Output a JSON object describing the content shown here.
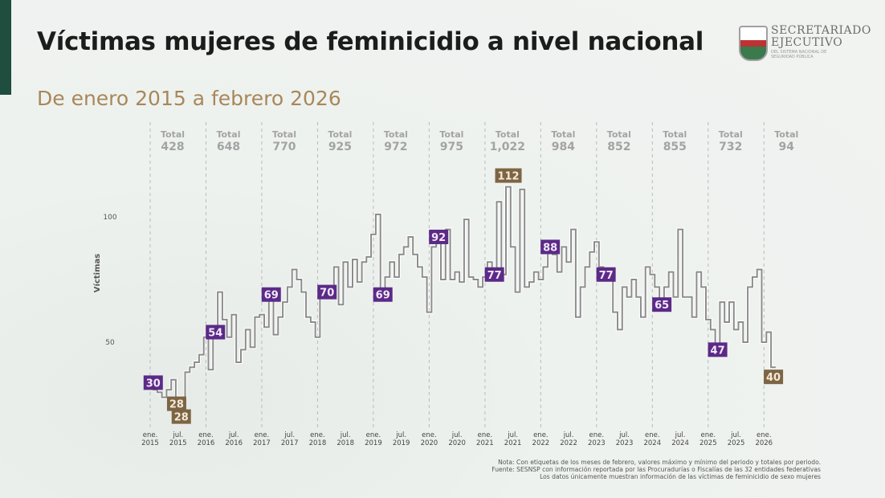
{
  "header": {
    "title": "Víctimas mujeres de feminicidio a nivel nacional",
    "subtitle": "De enero 2015 a febrero 2026",
    "logo": {
      "line1": "SECRETARIADO",
      "line2": "EJECUTIVO",
      "line3": "DEL SISTEMA NACIONAL DE SEGURIDAD PÚBLICA"
    }
  },
  "notes": [
    "Nota: Con etiquetas de los meses de febrero, valores máximo y mínimo del periodo y totales por periodo.",
    "Fuente: SESNSP con información reportada por las Procuradurías o Fiscalías de las 32 entidades federativas",
    "Los datos únicamente muestran información de las víctimas de feminicidio de sexo mujeres"
  ],
  "colors": {
    "line": "#8c8c8c",
    "label_purple": "#5b2a86",
    "label_brown": "#7d6544",
    "title": "#1c1c1c",
    "subtitle": "#a8875a",
    "accent": "#1f4d3e"
  },
  "chart_data": {
    "type": "line",
    "step": true,
    "ylabel": "Víctimas",
    "yticks": [
      50,
      100
    ],
    "ylim": [
      20,
      115
    ],
    "start": "2015-01",
    "end": "2026-02",
    "xticks": [
      {
        "month": "2015-01",
        "label": [
          "ene.",
          "2015"
        ]
      },
      {
        "month": "2015-07",
        "label": [
          "jul.",
          "2015"
        ]
      },
      {
        "month": "2016-01",
        "label": [
          "ene.",
          "2016"
        ]
      },
      {
        "month": "2016-07",
        "label": [
          "jul.",
          "2016"
        ]
      },
      {
        "month": "2017-01",
        "label": [
          "ene.",
          "2017"
        ]
      },
      {
        "month": "2017-07",
        "label": [
          "jul.",
          "2017"
        ]
      },
      {
        "month": "2018-01",
        "label": [
          "ene.",
          "2018"
        ]
      },
      {
        "month": "2018-07",
        "label": [
          "jul.",
          "2018"
        ]
      },
      {
        "month": "2019-01",
        "label": [
          "ene.",
          "2019"
        ]
      },
      {
        "month": "2019-07",
        "label": [
          "jul.",
          "2019"
        ]
      },
      {
        "month": "2020-01",
        "label": [
          "ene.",
          "2020"
        ]
      },
      {
        "month": "2020-07",
        "label": [
          "jul.",
          "2020"
        ]
      },
      {
        "month": "2021-01",
        "label": [
          "ene.",
          "2021"
        ]
      },
      {
        "month": "2021-07",
        "label": [
          "jul.",
          "2021"
        ]
      },
      {
        "month": "2022-01",
        "label": [
          "ene.",
          "2022"
        ]
      },
      {
        "month": "2022-07",
        "label": [
          "jul.",
          "2022"
        ]
      },
      {
        "month": "2023-01",
        "label": [
          "ene.",
          "2023"
        ]
      },
      {
        "month": "2023-07",
        "label": [
          "jul.",
          "2023"
        ]
      },
      {
        "month": "2024-01",
        "label": [
          "ene.",
          "2024"
        ]
      },
      {
        "month": "2024-07",
        "label": [
          "jul.",
          "2024"
        ]
      },
      {
        "month": "2025-01",
        "label": [
          "ene.",
          "2025"
        ]
      },
      {
        "month": "2025-07",
        "label": [
          "jul.",
          "2025"
        ]
      },
      {
        "month": "2026-01",
        "label": [
          "ene.",
          "2026"
        ]
      }
    ],
    "years": [
      {
        "year": 2015,
        "total_label": "Total",
        "total": "428",
        "values": [
          31,
          30,
          28,
          31,
          35,
          28,
          28,
          38,
          40,
          42,
          45,
          52
        ]
      },
      {
        "year": 2016,
        "total_label": "Total",
        "total": "648",
        "values": [
          39,
          54,
          70,
          59,
          52,
          61,
          42,
          47,
          55,
          48,
          60,
          61
        ]
      },
      {
        "year": 2017,
        "total_label": "Total",
        "total": "770",
        "values": [
          56,
          69,
          53,
          60,
          66,
          72,
          79,
          75,
          70,
          60,
          58,
          52
        ]
      },
      {
        "year": 2018,
        "total_label": "Total",
        "total": "925",
        "values": [
          68,
          70,
          72,
          80,
          65,
          82,
          72,
          83,
          74,
          82,
          84,
          93
        ]
      },
      {
        "year": 2019,
        "total_label": "Total",
        "total": "972",
        "values": [
          101,
          69,
          76,
          82,
          76,
          85,
          88,
          92,
          85,
          80,
          76,
          62
        ]
      },
      {
        "year": 2020,
        "total_label": "Total",
        "total": "975",
        "values": [
          88,
          92,
          75,
          95,
          75,
          78,
          74,
          99,
          76,
          75,
          72,
          76
        ]
      },
      {
        "year": 2021,
        "total_label": "Total",
        "total": "1,022",
        "values": [
          82,
          77,
          106,
          77,
          112,
          88,
          70,
          111,
          72,
          74,
          78,
          75
        ]
      },
      {
        "year": 2022,
        "total_label": "Total",
        "total": "984",
        "values": [
          80,
          88,
          85,
          78,
          88,
          82,
          95,
          60,
          72,
          80,
          86,
          90
        ]
      },
      {
        "year": 2023,
        "total_label": "Total",
        "total": "852",
        "values": [
          80,
          77,
          78,
          62,
          55,
          72,
          68,
          75,
          68,
          60,
          80,
          77
        ]
      },
      {
        "year": 2024,
        "total_label": "Total",
        "total": "855",
        "values": [
          72,
          65,
          72,
          78,
          68,
          95,
          68,
          68,
          60,
          78,
          72,
          59
        ]
      },
      {
        "year": 2025,
        "total_label": "Total",
        "total": "732",
        "values": [
          55,
          47,
          66,
          58,
          66,
          55,
          58,
          50,
          72,
          76,
          79,
          50
        ]
      },
      {
        "year": 2026,
        "total_label": "Total",
        "total": "94",
        "values": [
          54,
          40
        ]
      }
    ],
    "data_labels": [
      {
        "month": "2015-02",
        "value": 30,
        "kind": "february"
      },
      {
        "month": "2015-06",
        "value": 28,
        "kind": "min"
      },
      {
        "month": "2015-07",
        "value": 28,
        "kind": "min"
      },
      {
        "month": "2016-02",
        "value": 54,
        "kind": "february"
      },
      {
        "month": "2017-02",
        "value": 69,
        "kind": "february"
      },
      {
        "month": "2018-02",
        "value": 70,
        "kind": "february"
      },
      {
        "month": "2019-02",
        "value": 69,
        "kind": "february"
      },
      {
        "month": "2020-02",
        "value": 92,
        "kind": "february"
      },
      {
        "month": "2021-02",
        "value": 77,
        "kind": "february"
      },
      {
        "month": "2021-05",
        "value": 112,
        "kind": "max"
      },
      {
        "month": "2022-02",
        "value": 88,
        "kind": "february"
      },
      {
        "month": "2023-02",
        "value": 77,
        "kind": "february"
      },
      {
        "month": "2024-02",
        "value": 65,
        "kind": "february"
      },
      {
        "month": "2025-02",
        "value": 47,
        "kind": "february"
      },
      {
        "month": "2026-02",
        "value": 40,
        "kind": "last"
      }
    ]
  }
}
